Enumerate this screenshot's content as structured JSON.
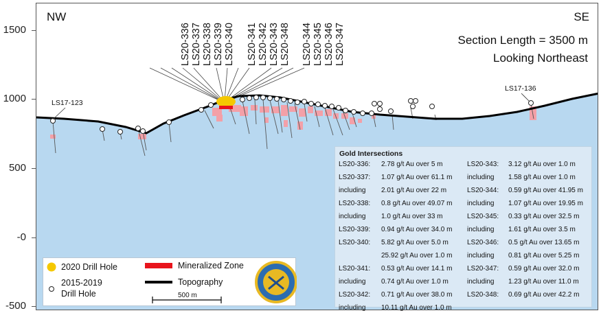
{
  "section": {
    "direction_left": "NW",
    "direction_right": "SE",
    "section_length": "Section Length = 3500 m",
    "looking": "Looking Northeast"
  },
  "y_axis": {
    "ticks": [
      "1500",
      "1000",
      "500",
      "-0",
      "-500"
    ]
  },
  "callout_holes": [
    "LS20-336",
    "LS20-337",
    "LS20-338",
    "LS20-339",
    "LS20-340",
    "LS20-341",
    "LS20-342",
    "LS20-343",
    "LS20-348",
    "LS20-344",
    "LS20-345",
    "LS20-346",
    "LS20-347"
  ],
  "hole_labels": {
    "left": "LS17-123",
    "right": "LS17-136"
  },
  "legend": {
    "drill_2020": "2020 Drill Hole",
    "drill_2015_2019_line1": "2015-2019",
    "drill_2015_2019_line2": "Drill Hole",
    "mineralized": "Mineralized Zone",
    "topography": "Topography",
    "scale": "500 m"
  },
  "colors": {
    "water": "#b8d8f0",
    "mineralized": "#f3a0a8",
    "mineralized_legend": "#e8141c",
    "drill_2020": "#f5c800",
    "topography": "#000000",
    "results_bg": "#dbe9f5",
    "logo_blue": "#2b6cb0",
    "logo_gold": "#e8b923"
  },
  "results": {
    "title": "Gold Intersections",
    "left": [
      {
        "hole": "LS20-336:",
        "value": "2.78 g/t Au over 5 m"
      },
      {
        "hole": "LS20-337:",
        "value": "1.07 g/t Au over 61.1 m"
      },
      {
        "hole": "including",
        "value": "2.01 g/t Au over 22 m"
      },
      {
        "hole": "LS20-338:",
        "value": "0.8 g/t Au over 49.07 m"
      },
      {
        "hole": "including",
        "value": "1.0 g/t Au over 33 m"
      },
      {
        "hole": "LS20-339:",
        "value": "0.94 g/t Au over 34.0 m"
      },
      {
        "hole": "LS20-340:",
        "value": "5.82 g/t Au over 5.0 m"
      },
      {
        "hole": "",
        "value": "25.92 g/t Au over 1.0 m"
      },
      {
        "hole": "LS20-341:",
        "value": "0.53 g/t Au over 14.1 m"
      },
      {
        "hole": "including",
        "value": "0.74 g/t Au over 1.0 m"
      },
      {
        "hole": "LS20-342:",
        "value": "0.71 g/t Au over 38.0 m"
      },
      {
        "hole": "including",
        "value": "10.11 g/t Au over 1.0 m"
      }
    ],
    "right": [
      {
        "hole": "LS20-343:",
        "value": "3.12 g/t Au over 1.0 m"
      },
      {
        "hole": "including",
        "value": "1.58 g/t Au over 1.0 m"
      },
      {
        "hole": "LS20-344:",
        "value": "0.59 g/t Au over 41.95 m"
      },
      {
        "hole": "including",
        "value": "1.07 g/t Au over 19.95 m"
      },
      {
        "hole": "LS20-345:",
        "value": "0.33 g/t Au over 32.5 m"
      },
      {
        "hole": "including",
        "value": "1.61 g/t Au over 3.5 m"
      },
      {
        "hole": "LS20-346:",
        "value": "0.5 g/t Au over 13.65 m"
      },
      {
        "hole": "including",
        "value": "0.81 g/t Au over 5.25 m"
      },
      {
        "hole": "LS20-347:",
        "value": "0.59 g/t Au over 32.0 m"
      },
      {
        "hole": "including",
        "value": "1.23 g/t Au over 11.0 m"
      },
      {
        "hole": "LS20-348:",
        "value": "0.69 g/t Au over 42.2 m"
      }
    ]
  }
}
